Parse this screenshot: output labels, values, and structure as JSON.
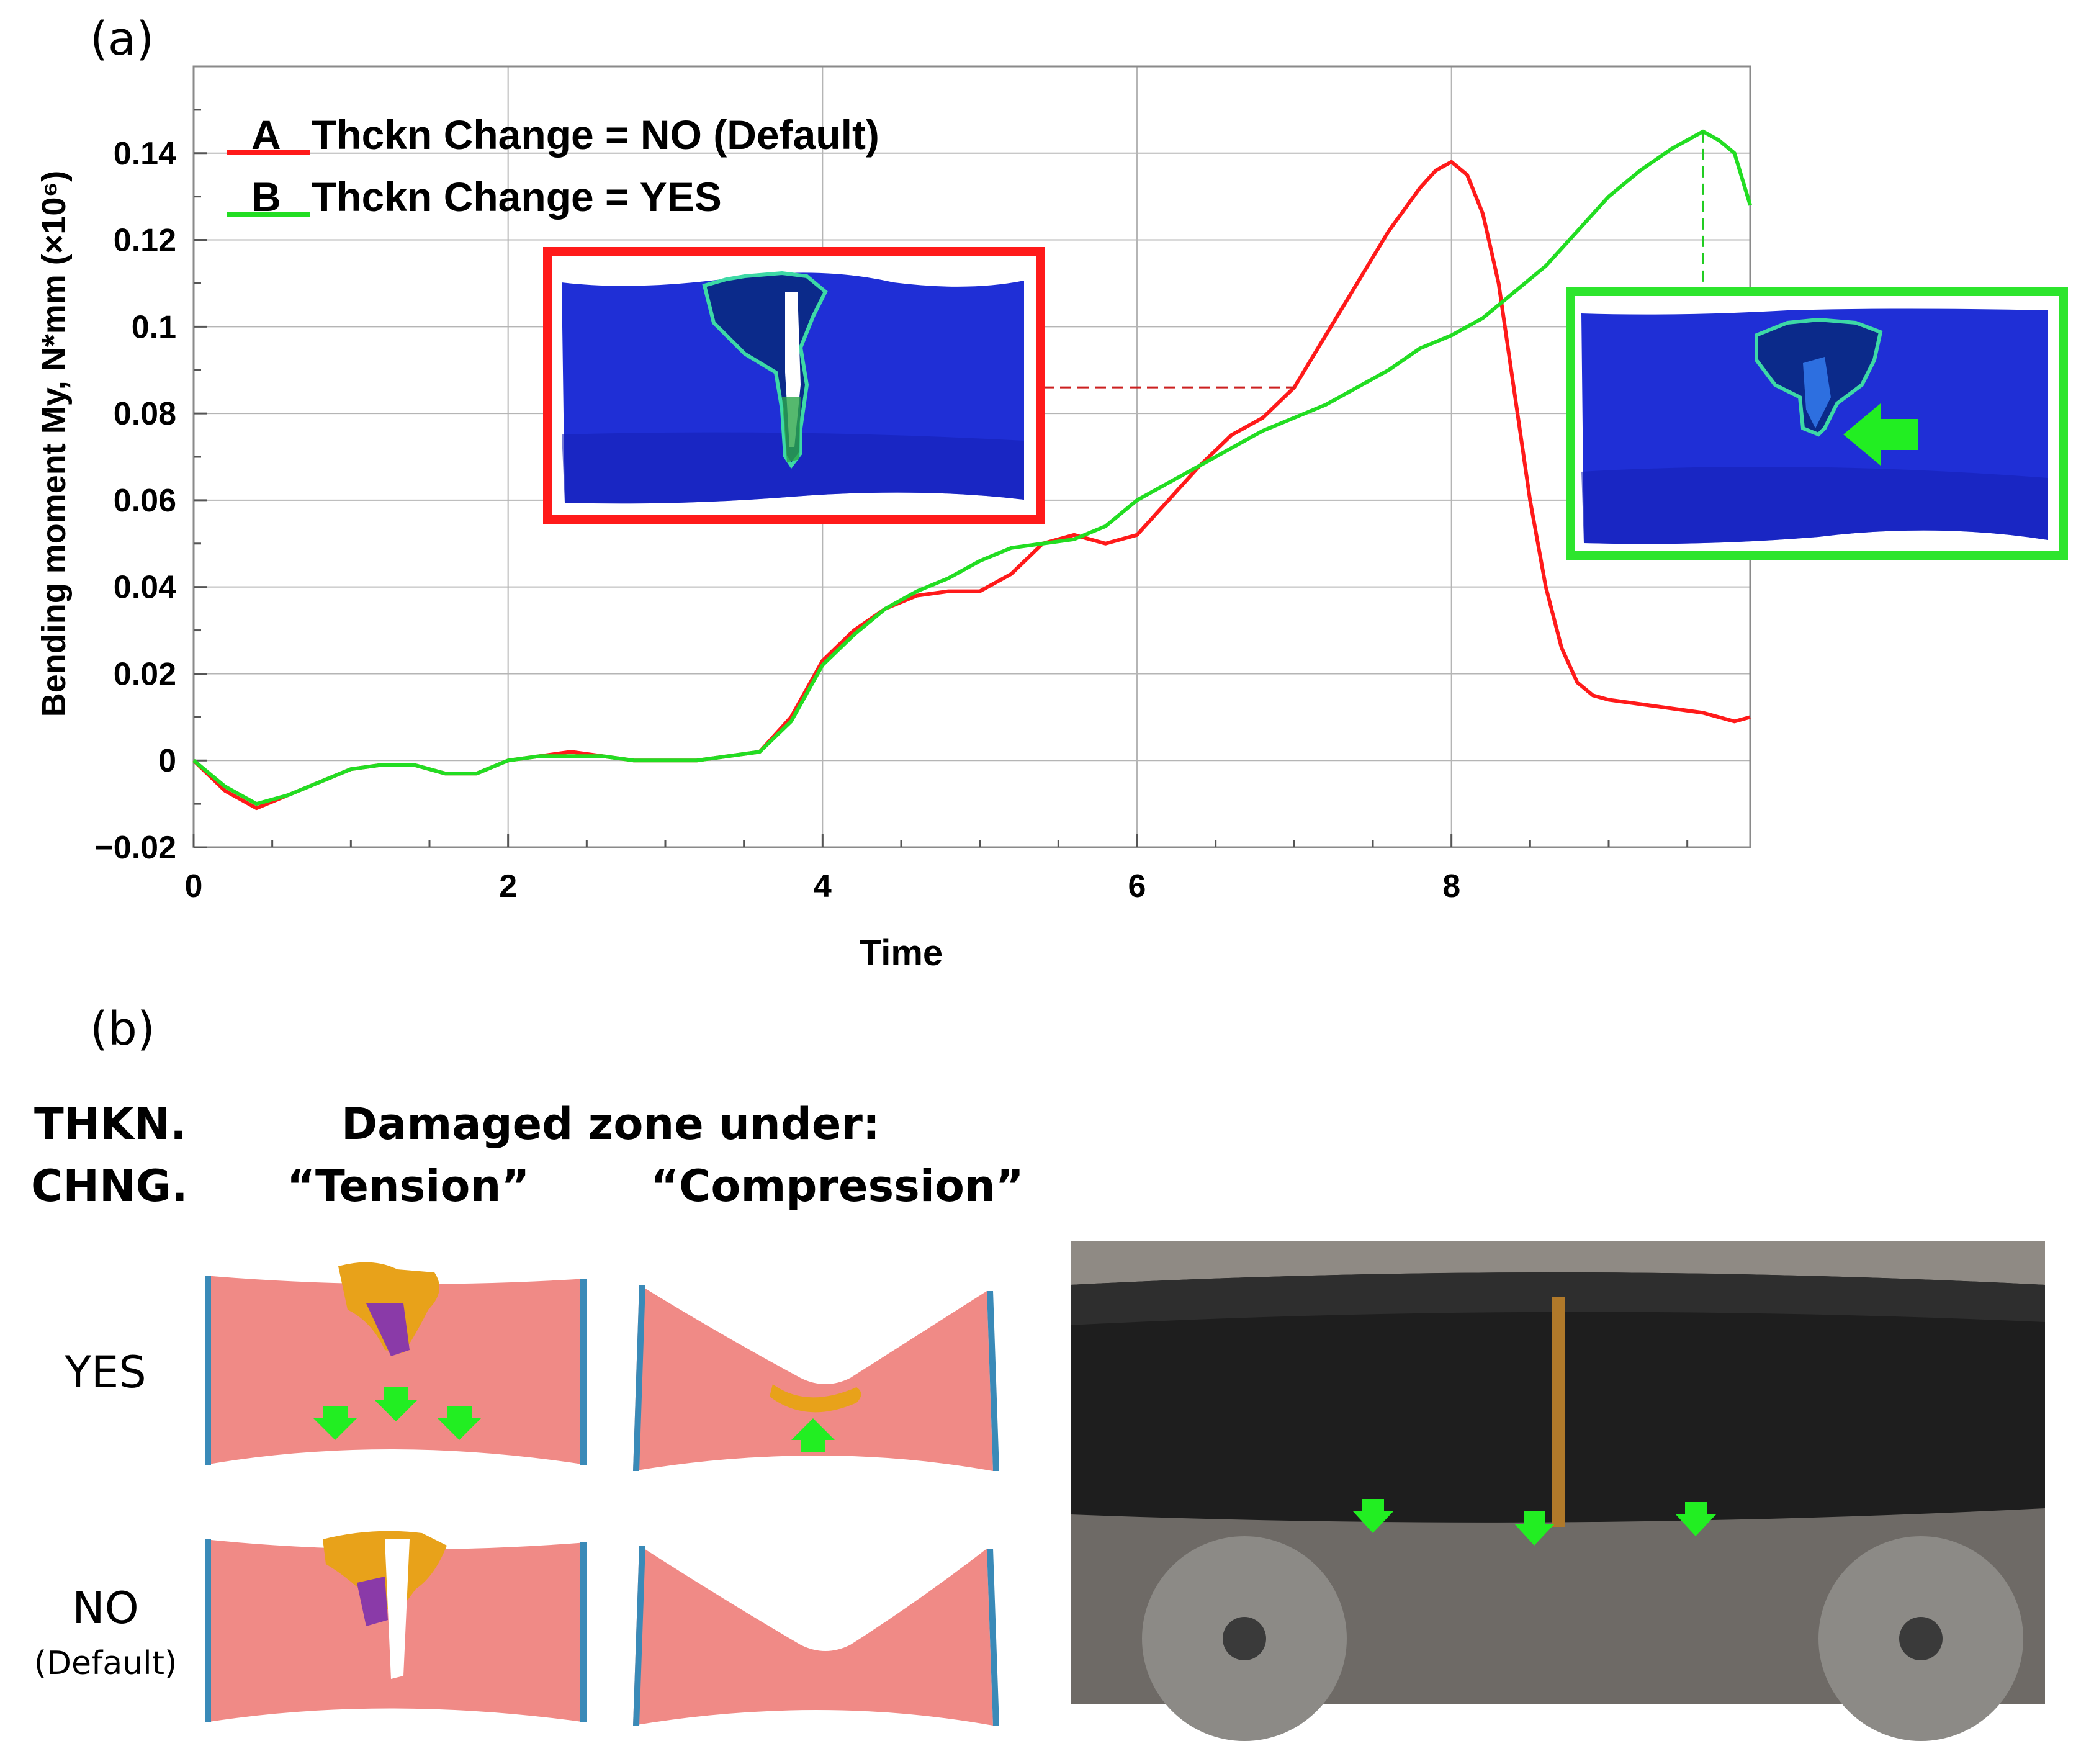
{
  "panel_a_label": "(a)",
  "panel_b_label": "(b)",
  "chart_data": {
    "type": "line",
    "xlabel": "Time",
    "ylabel": "Bending moment My, N*mm (×10⁶)",
    "xlim": [
      0,
      9.9
    ],
    "ylim": [
      -0.02,
      0.16
    ],
    "x_ticks": [
      "0",
      "2",
      "4",
      "6",
      "8"
    ],
    "y_ticks": [
      "−0.02",
      "0",
      "0.02",
      "0.04",
      "0.06",
      "0.08",
      "0.1",
      "0.12",
      "0.14"
    ],
    "grid": true,
    "legend_position": "top-left",
    "series": [
      {
        "name": "A  Thckn Change = NO (Default)",
        "color": "#ff1a1a",
        "x": [
          0,
          0.2,
          0.4,
          0.6,
          0.8,
          1.0,
          1.2,
          1.4,
          1.6,
          1.8,
          2.0,
          2.2,
          2.4,
          2.6,
          2.8,
          3.0,
          3.2,
          3.4,
          3.6,
          3.8,
          4.0,
          4.2,
          4.4,
          4.6,
          4.8,
          5.0,
          5.2,
          5.4,
          5.6,
          5.8,
          6.0,
          6.2,
          6.4,
          6.6,
          6.8,
          7.0,
          7.2,
          7.4,
          7.6,
          7.8,
          7.9,
          8.0,
          8.1,
          8.2,
          8.3,
          8.4,
          8.5,
          8.6,
          8.7,
          8.8,
          8.9,
          9.0,
          9.2,
          9.4,
          9.6,
          9.8,
          9.9
        ],
        "y": [
          0,
          -0.007,
          -0.011,
          -0.008,
          -0.005,
          -0.002,
          -0.001,
          -0.001,
          -0.003,
          -0.003,
          0,
          0.001,
          0.002,
          0.001,
          0,
          0,
          0,
          0.001,
          0.002,
          0.01,
          0.023,
          0.03,
          0.035,
          0.038,
          0.039,
          0.039,
          0.043,
          0.05,
          0.052,
          0.05,
          0.052,
          0.06,
          0.068,
          0.075,
          0.079,
          0.086,
          0.098,
          0.11,
          0.122,
          0.132,
          0.136,
          0.138,
          0.135,
          0.126,
          0.11,
          0.085,
          0.06,
          0.04,
          0.026,
          0.018,
          0.015,
          0.014,
          0.013,
          0.012,
          0.011,
          0.009,
          0.01
        ]
      },
      {
        "name": "B  Thckn Change = YES",
        "color": "#22dd22",
        "x": [
          0,
          0.2,
          0.4,
          0.6,
          0.8,
          1.0,
          1.2,
          1.4,
          1.6,
          1.8,
          2.0,
          2.2,
          2.4,
          2.6,
          2.8,
          3.0,
          3.2,
          3.4,
          3.6,
          3.8,
          4.0,
          4.2,
          4.4,
          4.6,
          4.8,
          5.0,
          5.2,
          5.4,
          5.6,
          5.8,
          6.0,
          6.2,
          6.4,
          6.6,
          6.8,
          7.0,
          7.2,
          7.4,
          7.6,
          7.8,
          8.0,
          8.2,
          8.4,
          8.6,
          8.8,
          9.0,
          9.2,
          9.4,
          9.5,
          9.6,
          9.7,
          9.8,
          9.9
        ],
        "y": [
          0,
          -0.006,
          -0.01,
          -0.008,
          -0.005,
          -0.002,
          -0.001,
          -0.001,
          -0.003,
          -0.003,
          0,
          0.001,
          0.001,
          0.001,
          0,
          0,
          0,
          0.001,
          0.002,
          0.009,
          0.022,
          0.029,
          0.035,
          0.039,
          0.042,
          0.046,
          0.049,
          0.05,
          0.051,
          0.054,
          0.06,
          0.064,
          0.068,
          0.072,
          0.076,
          0.079,
          0.082,
          0.086,
          0.09,
          0.095,
          0.098,
          0.102,
          0.108,
          0.114,
          0.122,
          0.13,
          0.136,
          0.141,
          0.143,
          0.145,
          0.143,
          0.14,
          0.128
        ]
      }
    ]
  },
  "legend": {
    "a_letter": "A",
    "a_text": "Thckn Change = NO (Default)",
    "b_letter": "B",
    "b_text": "Thckn Change = YES"
  },
  "panel_b": {
    "col_header_1": "THKN.",
    "col_header_2": "CHNG.",
    "title": "Damaged zone under:",
    "tension": "“Tension”",
    "compression": "“Compression”",
    "row_yes": "YES",
    "row_no": "NO",
    "row_no_sub": "(Default)"
  },
  "colors": {
    "red_series": "#ff1a1a",
    "green_series": "#22dd22",
    "model_blue": "#1f2fd6",
    "model_pink": "#f08a86",
    "damage_orange": "#e8a21a",
    "arrow_green": "#22ee22"
  }
}
